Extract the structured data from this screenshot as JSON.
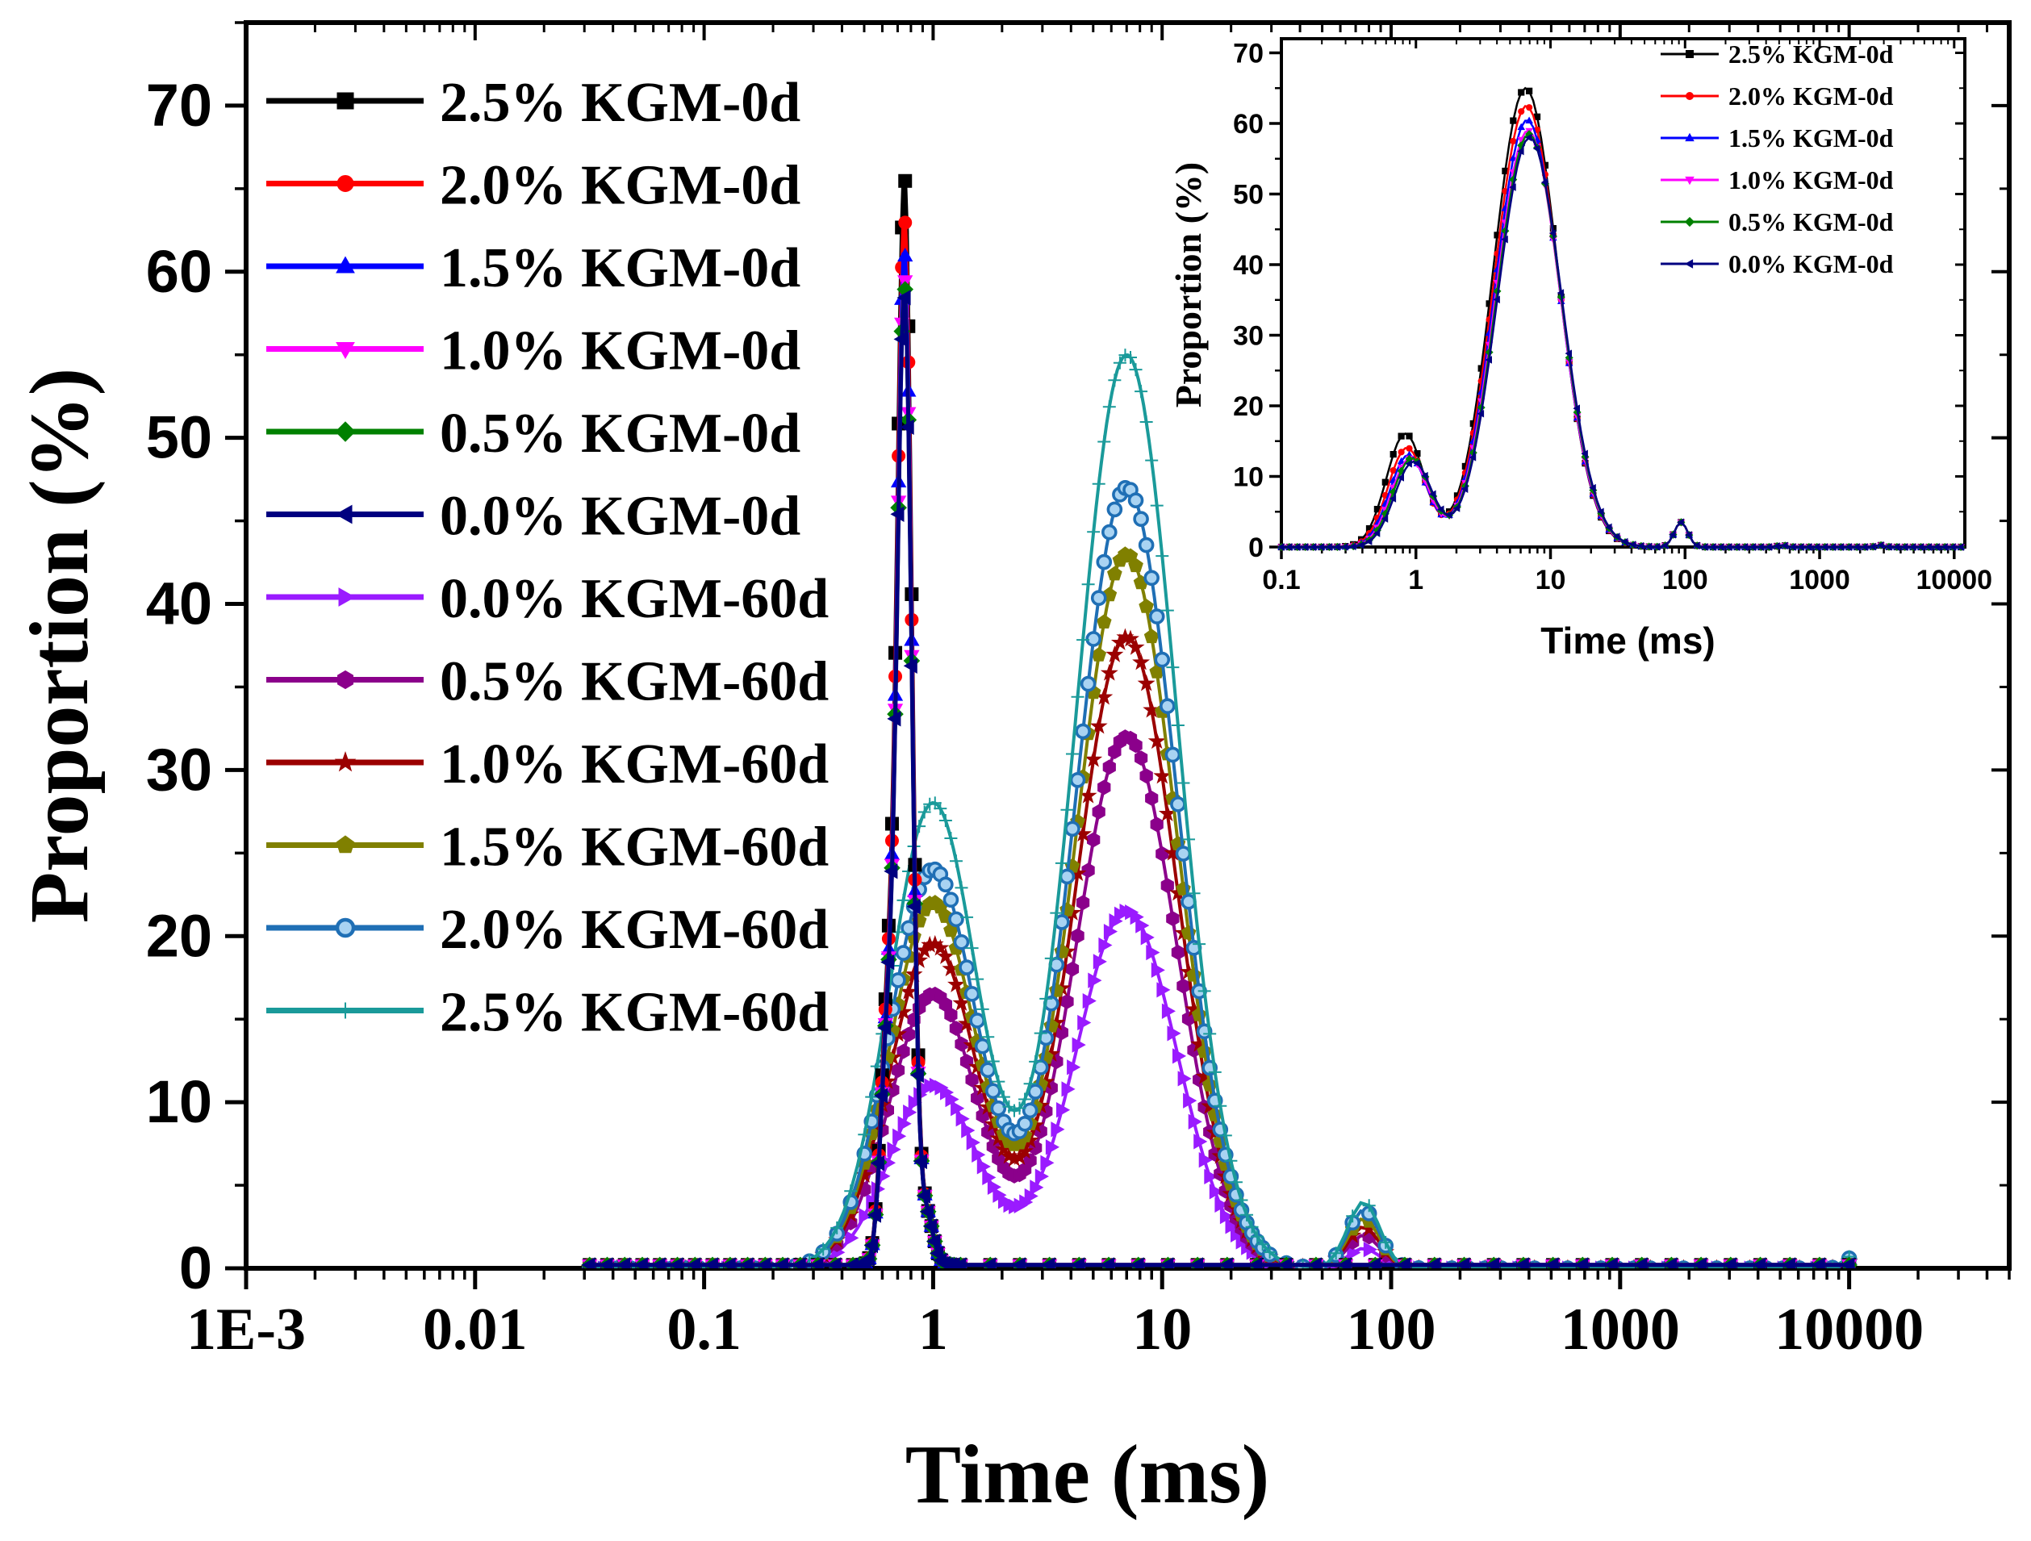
{
  "chart_data": [
    {
      "id": "main",
      "type": "line",
      "xscale": "log",
      "xlim": [
        0.001,
        50000
      ],
      "ylim": [
        0,
        75
      ],
      "xlabel": "Time (ms)",
      "ylabel": "Proportion (%)",
      "xticks": [
        "1E-3",
        "0.01",
        "0.1",
        "1",
        "10",
        "100",
        "1000",
        "10000"
      ],
      "yticks": [
        "0",
        "10",
        "20",
        "30",
        "40",
        "50",
        "60",
        "70"
      ],
      "legend_position": "top-left",
      "series": [
        {
          "name": "2.5% KGM-0d",
          "color": "#000000",
          "marker": "square",
          "sharp": 65,
          "peak2": 0,
          "peak1": 0,
          "peak3": 0.3,
          "peak4": 0.2
        },
        {
          "name": "2.0% KGM-0d",
          "color": "#ff0000",
          "marker": "circle",
          "sharp": 62.5,
          "peak2": 0,
          "peak1": 0,
          "peak3": 0.2,
          "peak4": 0.2
        },
        {
          "name": "1.5% KGM-0d",
          "color": "#0000ff",
          "marker": "triangle-up",
          "sharp": 60.5,
          "peak2": 0,
          "peak1": 0,
          "peak3": 0.2,
          "peak4": 0.2
        },
        {
          "name": "1.0% KGM-0d",
          "color": "#ff00ff",
          "marker": "triangle-down",
          "sharp": 59,
          "peak2": 0,
          "peak1": 0,
          "peak3": 0.2,
          "peak4": 0.2
        },
        {
          "name": "0.5% KGM-0d",
          "color": "#008000",
          "marker": "diamond",
          "sharp": 58.5,
          "peak2": 0,
          "peak1": 0,
          "peak3": 0.2,
          "peak4": 0.2
        },
        {
          "name": "0.0% KGM-0d",
          "color": "#000080",
          "marker": "triangle-left",
          "sharp": 58,
          "peak2": 0,
          "peak1": 0,
          "peak3": 0.2,
          "peak4": 0.2
        },
        {
          "name": "0.0% KGM-60d",
          "color": "#9a1bff",
          "marker": "triangle-right",
          "sharp": 0,
          "peak1": 11,
          "peak2": 21.5,
          "peak3": 1.2,
          "peak4": 0.3
        },
        {
          "name": "0.5% KGM-60d",
          "color": "#8b008b",
          "marker": "hexagon",
          "sharp": 0,
          "peak1": 16.5,
          "peak2": 32,
          "peak3": 2,
          "peak4": 0.3
        },
        {
          "name": "1.0% KGM-60d",
          "color": "#9b0000",
          "marker": "star",
          "sharp": 0,
          "peak1": 19.5,
          "peak2": 38,
          "peak3": 2.5,
          "peak4": 0.4
        },
        {
          "name": "1.5% KGM-60d",
          "color": "#808000",
          "marker": "pentagon",
          "sharp": 0,
          "peak1": 22,
          "peak2": 43,
          "peak3": 3,
          "peak4": 0.5
        },
        {
          "name": "2.0% KGM-60d",
          "color": "#1f6fb5",
          "marker": "ring",
          "sharp": 0,
          "peak1": 24,
          "peak2": 47,
          "peak3": 3.5,
          "peak4": 0.6
        },
        {
          "name": "2.5% KGM-60d",
          "color": "#1a9a9a",
          "marker": "plus",
          "sharp": 0,
          "peak1": 28,
          "peak2": 55,
          "peak3": 4,
          "peak4": 0.7
        }
      ]
    },
    {
      "id": "inset",
      "type": "line",
      "xscale": "log",
      "xlim": [
        0.1,
        12000
      ],
      "ylim": [
        0,
        72
      ],
      "xlabel": "Time (ms)",
      "ylabel": "Proportion (%)",
      "xticks": [
        "0.1",
        "1",
        "10",
        "100",
        "1000",
        "10000"
      ],
      "yticks": [
        "0",
        "10",
        "20",
        "30",
        "40",
        "50",
        "60",
        "70"
      ],
      "legend_position": "top-right",
      "series": [
        {
          "name": "2.5% KGM-0d",
          "color": "#000000",
          "marker": "square",
          "peak1": 16,
          "peak2": 65,
          "peak3": 3.5
        },
        {
          "name": "2.0% KGM-0d",
          "color": "#ff0000",
          "marker": "circle",
          "peak1": 14,
          "peak2": 62.5,
          "peak3": 3.5
        },
        {
          "name": "1.5% KGM-0d",
          "color": "#0000ff",
          "marker": "triangle-up",
          "peak1": 13,
          "peak2": 60.5,
          "peak3": 3.5
        },
        {
          "name": "1.0% KGM-0d",
          "color": "#ff00ff",
          "marker": "triangle-down",
          "peak1": 12.5,
          "peak2": 59,
          "peak3": 3.5
        },
        {
          "name": "0.5% KGM-0d",
          "color": "#008000",
          "marker": "diamond",
          "peak1": 12.5,
          "peak2": 58.5,
          "peak3": 3.5
        },
        {
          "name": "0.0% KGM-0d",
          "color": "#000080",
          "marker": "triangle-left",
          "peak1": 12,
          "peak2": 58,
          "peak3": 3.5
        }
      ]
    }
  ]
}
